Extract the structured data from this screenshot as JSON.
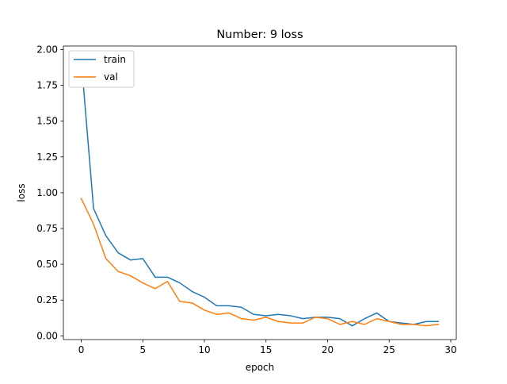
{
  "chart_data": {
    "type": "line",
    "title": "Number: 9 loss",
    "xlabel": "epoch",
    "ylabel": "loss",
    "x": [
      0,
      1,
      2,
      3,
      4,
      5,
      6,
      7,
      8,
      9,
      10,
      11,
      12,
      13,
      14,
      15,
      16,
      17,
      18,
      19,
      20,
      21,
      22,
      23,
      24,
      25,
      26,
      27,
      28,
      29
    ],
    "series": [
      {
        "name": "train",
        "color": "#1f77b4",
        "values": [
          1.93,
          0.89,
          0.7,
          0.58,
          0.53,
          0.54,
          0.41,
          0.41,
          0.37,
          0.31,
          0.27,
          0.21,
          0.21,
          0.2,
          0.15,
          0.14,
          0.15,
          0.14,
          0.12,
          0.13,
          0.13,
          0.12,
          0.07,
          0.12,
          0.16,
          0.1,
          0.09,
          0.08,
          0.1,
          0.1
        ]
      },
      {
        "name": "val",
        "color": "#ff7f0e",
        "values": [
          0.96,
          0.78,
          0.54,
          0.45,
          0.42,
          0.37,
          0.33,
          0.38,
          0.24,
          0.23,
          0.18,
          0.15,
          0.16,
          0.12,
          0.11,
          0.13,
          0.1,
          0.09,
          0.09,
          0.13,
          0.12,
          0.08,
          0.1,
          0.08,
          0.12,
          0.1,
          0.08,
          0.08,
          0.07,
          0.08
        ]
      }
    ],
    "xlim": [
      -1.45,
      30.45
    ],
    "ylim": [
      -0.026,
      2.025
    ],
    "xticks": [
      0,
      5,
      10,
      15,
      20,
      25,
      30
    ],
    "yticks": [
      0.0,
      0.25,
      0.5,
      0.75,
      1.0,
      1.25,
      1.5,
      1.75,
      2.0
    ],
    "xtick_labels": [
      "0",
      "5",
      "10",
      "15",
      "20",
      "25",
      "30"
    ],
    "ytick_labels": [
      "0.00",
      "0.25",
      "0.50",
      "0.75",
      "1.00",
      "1.25",
      "1.50",
      "1.75",
      "2.00"
    ],
    "grid": false,
    "legend_position": "top-left"
  }
}
